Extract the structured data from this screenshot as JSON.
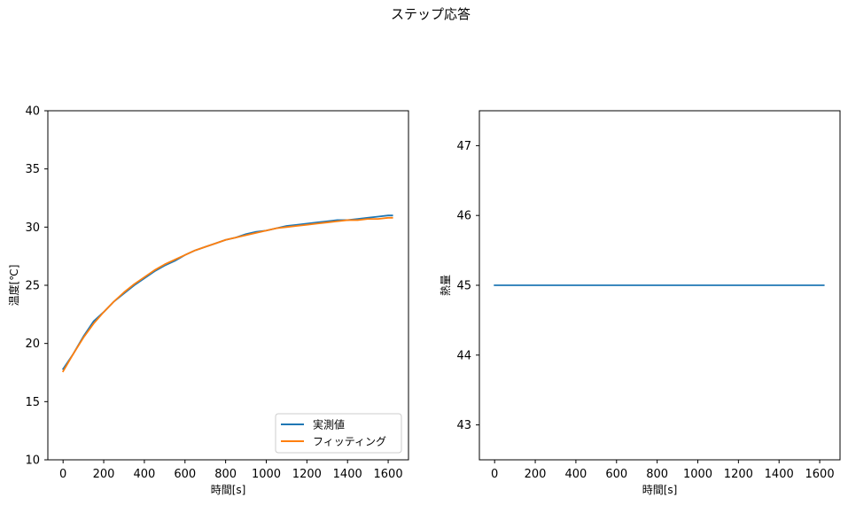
{
  "figure": {
    "suptitle": "ステップ応答"
  },
  "colors": {
    "measured": "#1f77b4",
    "fit": "#ff7f0e",
    "axes": "#000000"
  },
  "chart_data": [
    {
      "type": "line",
      "title": "",
      "xlabel": "時間[s]",
      "ylabel": "温度[℃]",
      "xlim": [
        -75,
        1700
      ],
      "ylim": [
        10,
        40
      ],
      "xticks": [
        0,
        200,
        400,
        600,
        800,
        1000,
        1200,
        1400,
        1600
      ],
      "yticks": [
        10,
        15,
        20,
        25,
        30,
        35,
        40
      ],
      "grid": false,
      "legend_position": "lower-right",
      "series": [
        {
          "name": "実測値",
          "color": "#1f77b4",
          "x": [
            0,
            50,
            100,
            150,
            200,
            250,
            300,
            350,
            400,
            450,
            500,
            550,
            600,
            650,
            700,
            750,
            800,
            850,
            900,
            950,
            1000,
            1050,
            1100,
            1150,
            1200,
            1250,
            1300,
            1350,
            1400,
            1450,
            1500,
            1550,
            1600,
            1620
          ],
          "values": [
            17.8,
            19.1,
            20.6,
            21.9,
            22.7,
            23.6,
            24.3,
            25.0,
            25.6,
            26.2,
            26.7,
            27.1,
            27.6,
            28.0,
            28.3,
            28.6,
            28.9,
            29.1,
            29.4,
            29.6,
            29.7,
            29.9,
            30.1,
            30.2,
            30.3,
            30.4,
            30.5,
            30.6,
            30.6,
            30.7,
            30.8,
            30.9,
            31.0,
            31.0
          ]
        },
        {
          "name": "フィッティング",
          "color": "#ff7f0e",
          "x": [
            0,
            50,
            100,
            150,
            200,
            250,
            300,
            350,
            400,
            450,
            500,
            550,
            600,
            650,
            700,
            750,
            800,
            850,
            900,
            950,
            1000,
            1050,
            1100,
            1150,
            1200,
            1250,
            1300,
            1350,
            1400,
            1450,
            1500,
            1550,
            1600,
            1620
          ],
          "values": [
            17.6,
            19.1,
            20.5,
            21.7,
            22.7,
            23.6,
            24.4,
            25.1,
            25.7,
            26.3,
            26.8,
            27.2,
            27.6,
            28.0,
            28.3,
            28.6,
            28.9,
            29.1,
            29.3,
            29.5,
            29.7,
            29.9,
            30.0,
            30.1,
            30.2,
            30.3,
            30.4,
            30.5,
            30.6,
            30.6,
            30.7,
            30.7,
            30.8,
            30.8
          ]
        }
      ]
    },
    {
      "type": "line",
      "title": "",
      "xlabel": "時間[s]",
      "ylabel": "熱量",
      "xlim": [
        -75,
        1700
      ],
      "ylim": [
        42.5,
        47.5
      ],
      "xticks": [
        0,
        200,
        400,
        600,
        800,
        1000,
        1200,
        1400,
        1600
      ],
      "yticks": [
        43,
        44,
        45,
        46,
        47
      ],
      "grid": false,
      "legend_position": "",
      "series": [
        {
          "color": "#1f77b4",
          "x": [
            0,
            1620
          ],
          "values": [
            45,
            45
          ]
        }
      ]
    }
  ]
}
